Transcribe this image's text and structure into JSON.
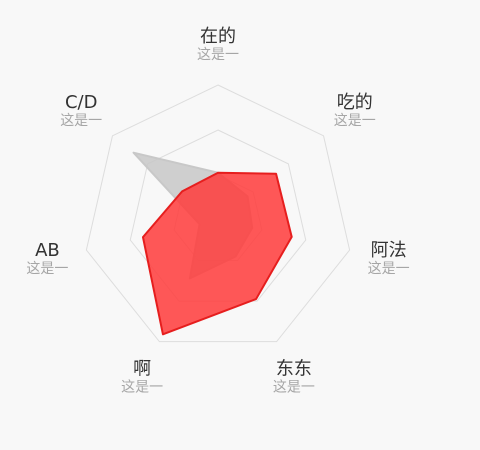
{
  "chart_data": {
    "type": "radar",
    "max": 100,
    "ring_count": 3,
    "axes": [
      {
        "label": "在的",
        "sublabel": "这是一"
      },
      {
        "label": "吃的",
        "sublabel": "这是一"
      },
      {
        "label": "阿法",
        "sublabel": "这是一"
      },
      {
        "label": "东东",
        "sublabel": "这是一"
      },
      {
        "label": "啊",
        "sublabel": "这是一"
      },
      {
        "label": "AB",
        "sublabel": "这是一"
      },
      {
        "label": "C/D",
        "sublabel": "这是一"
      }
    ],
    "series": [
      {
        "values": [
          35,
          28,
          26,
          30,
          48,
          14,
          80
        ],
        "fill": "#c8c8c8",
        "stroke": "#c8c8c8",
        "opacity": 0.85
      },
      {
        "values": [
          35,
          55,
          56,
          65,
          94,
          57,
          34
        ],
        "fill": "#ff3b3b",
        "stroke": "#e61e1e",
        "opacity": 0.85
      }
    ],
    "colors": {
      "grid": "#dddddd",
      "label": "#333333",
      "sublabel": "#a6a6a6"
    }
  }
}
